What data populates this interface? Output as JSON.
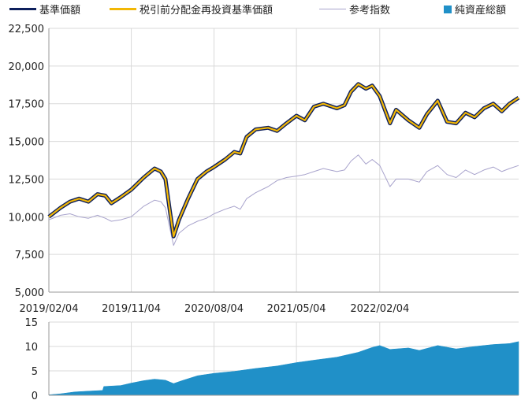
{
  "legend": {
    "nav": {
      "label": "基準価額",
      "color": "#0d1f5c"
    },
    "reinvested": {
      "label": "税引前分配金再投資基準価額",
      "color": "#f2b705"
    },
    "reference": {
      "label": "参考指数",
      "color": "#a8a3cc"
    },
    "net_assets": {
      "label": "純資産総額",
      "color": "#2090c8"
    }
  },
  "chart_data": [
    {
      "type": "line",
      "x_tick_labels": [
        "2019/02/04",
        "2019/11/04",
        "2020/08/04",
        "2021/05/04",
        "2022/02/04"
      ],
      "y_tick_labels": [
        "5,000",
        "7,500",
        "10,000",
        "12,500",
        "15,000",
        "17,500",
        "20,000",
        "22,500"
      ],
      "ylim": [
        5000,
        22500
      ],
      "grid": true,
      "series": [
        {
          "name": "基準価額",
          "color": "#0d1f5c",
          "points": [
            [
              "2019/02/04",
              10000
            ],
            [
              "2019/03/15",
              10600
            ],
            [
              "2019/04/15",
              11000
            ],
            [
              "2019/05/15",
              11200
            ],
            [
              "2019/06/15",
              11000
            ],
            [
              "2019/07/15",
              11500
            ],
            [
              "2019/08/10",
              11400
            ],
            [
              "2019/08/30",
              10900
            ],
            [
              "2019/09/30",
              11300
            ],
            [
              "2019/11/04",
              11800
            ],
            [
              "2019/12/15",
              12600
            ],
            [
              "2020/01/20",
              13200
            ],
            [
              "2020/02/10",
              13000
            ],
            [
              "2020/02/25",
              12500
            ],
            [
              "2020/03/10",
              10500
            ],
            [
              "2020/03/23",
              8700
            ],
            [
              "2020/04/10",
              9800
            ],
            [
              "2020/05/10",
              11200
            ],
            [
              "2020/06/10",
              12500
            ],
            [
              "2020/07/10",
              13000
            ],
            [
              "2020/08/04",
              13300
            ],
            [
              "2020/09/10",
              13800
            ],
            [
              "2020/10/10",
              14300
            ],
            [
              "2020/10/30",
              14200
            ],
            [
              "2020/11/20",
              15300
            ],
            [
              "2020/12/20",
              15800
            ],
            [
              "2021/01/30",
              15900
            ],
            [
              "2021/03/01",
              15700
            ],
            [
              "2021/04/01",
              16200
            ],
            [
              "2021/05/04",
              16700
            ],
            [
              "2021/06/01",
              16400
            ],
            [
              "2021/07/01",
              17300
            ],
            [
              "2021/08/01",
              17500
            ],
            [
              "2021/09/15",
              17200
            ],
            [
              "2021/10/10",
              17400
            ],
            [
              "2021/11/01",
              18300
            ],
            [
              "2021/11/25",
              18800
            ],
            [
              "2021/12/20",
              18500
            ],
            [
              "2022/01/10",
              18700
            ],
            [
              "2022/02/04",
              18000
            ],
            [
              "2022/03/10",
              16200
            ],
            [
              "2022/03/30",
              17100
            ],
            [
              "2022/05/10",
              16400
            ],
            [
              "2022/06/15",
              15900
            ],
            [
              "2022/07/10",
              16800
            ],
            [
              "2022/08/15",
              17700
            ],
            [
              "2022/09/15",
              16300
            ],
            [
              "2022/10/15",
              16200
            ],
            [
              "2022/11/15",
              16900
            ],
            [
              "2022/12/15",
              16600
            ],
            [
              "2023/01/15",
              17200
            ],
            [
              "2023/02/15",
              17500
            ],
            [
              "2023/03/15",
              17000
            ],
            [
              "2023/04/10",
              17500
            ],
            [
              "2023/05/10",
              17900
            ]
          ]
        },
        {
          "name": "税引前分配金再投資基準価額",
          "color": "#f2b705",
          "points": [
            [
              "2019/02/04",
              10000
            ],
            [
              "2019/03/15",
              10600
            ],
            [
              "2019/04/15",
              11000
            ],
            [
              "2019/05/15",
              11200
            ],
            [
              "2019/06/15",
              11000
            ],
            [
              "2019/07/15",
              11500
            ],
            [
              "2019/08/10",
              11400
            ],
            [
              "2019/08/30",
              10900
            ],
            [
              "2019/09/30",
              11300
            ],
            [
              "2019/11/04",
              11800
            ],
            [
              "2019/12/15",
              12600
            ],
            [
              "2020/01/20",
              13200
            ],
            [
              "2020/02/10",
              13000
            ],
            [
              "2020/02/25",
              12500
            ],
            [
              "2020/03/10",
              10500
            ],
            [
              "2020/03/23",
              8700
            ],
            [
              "2020/04/10",
              9800
            ],
            [
              "2020/05/10",
              11200
            ],
            [
              "2020/06/10",
              12500
            ],
            [
              "2020/07/10",
              13000
            ],
            [
              "2020/08/04",
              13300
            ],
            [
              "2020/09/10",
              13800
            ],
            [
              "2020/10/10",
              14300
            ],
            [
              "2020/10/30",
              14200
            ],
            [
              "2020/11/20",
              15300
            ],
            [
              "2020/12/20",
              15800
            ],
            [
              "2021/01/30",
              15900
            ],
            [
              "2021/03/01",
              15700
            ],
            [
              "2021/04/01",
              16200
            ],
            [
              "2021/05/04",
              16700
            ],
            [
              "2021/06/01",
              16400
            ],
            [
              "2021/07/01",
              17300
            ],
            [
              "2021/08/01",
              17500
            ],
            [
              "2021/09/15",
              17200
            ],
            [
              "2021/10/10",
              17400
            ],
            [
              "2021/11/01",
              18300
            ],
            [
              "2021/11/25",
              18800
            ],
            [
              "2021/12/20",
              18500
            ],
            [
              "2022/01/10",
              18700
            ],
            [
              "2022/02/04",
              18000
            ],
            [
              "2022/03/10",
              16200
            ],
            [
              "2022/03/30",
              17100
            ],
            [
              "2022/05/10",
              16400
            ],
            [
              "2022/06/15",
              15900
            ],
            [
              "2022/07/10",
              16800
            ],
            [
              "2022/08/15",
              17700
            ],
            [
              "2022/09/15",
              16300
            ],
            [
              "2022/10/15",
              16200
            ],
            [
              "2022/11/15",
              16900
            ],
            [
              "2022/12/15",
              16600
            ],
            [
              "2023/01/15",
              17200
            ],
            [
              "2023/02/15",
              17500
            ],
            [
              "2023/03/15",
              17000
            ],
            [
              "2023/04/10",
              17500
            ],
            [
              "2023/05/10",
              17900
            ]
          ]
        },
        {
          "name": "参考指数",
          "color": "#a8a3cc",
          "points": [
            [
              "2019/02/04",
              9800
            ],
            [
              "2019/03/15",
              10100
            ],
            [
              "2019/04/15",
              10200
            ],
            [
              "2019/05/15",
              10000
            ],
            [
              "2019/06/15",
              9900
            ],
            [
              "2019/07/15",
              10100
            ],
            [
              "2019/08/10",
              9900
            ],
            [
              "2019/08/30",
              9700
            ],
            [
              "2019/09/30",
              9800
            ],
            [
              "2019/11/04",
              10000
            ],
            [
              "2019/12/15",
              10700
            ],
            [
              "2020/01/20",
              11100
            ],
            [
              "2020/02/10",
              11000
            ],
            [
              "2020/02/25",
              10600
            ],
            [
              "2020/03/10",
              9300
            ],
            [
              "2020/03/23",
              8100
            ],
            [
              "2020/04/10",
              8900
            ],
            [
              "2020/05/10",
              9400
            ],
            [
              "2020/06/10",
              9700
            ],
            [
              "2020/07/10",
              9900
            ],
            [
              "2020/08/04",
              10200
            ],
            [
              "2020/09/10",
              10500
            ],
            [
              "2020/10/10",
              10700
            ],
            [
              "2020/10/30",
              10500
            ],
            [
              "2020/11/20",
              11200
            ],
            [
              "2020/12/20",
              11600
            ],
            [
              "2021/01/30",
              12000
            ],
            [
              "2021/03/01",
              12400
            ],
            [
              "2021/04/01",
              12600
            ],
            [
              "2021/05/04",
              12700
            ],
            [
              "2021/06/01",
              12800
            ],
            [
              "2021/07/01",
              13000
            ],
            [
              "2021/08/01",
              13200
            ],
            [
              "2021/09/15",
              13000
            ],
            [
              "2021/10/10",
              13100
            ],
            [
              "2021/11/01",
              13700
            ],
            [
              "2021/11/25",
              14100
            ],
            [
              "2021/12/20",
              13500
            ],
            [
              "2022/01/10",
              13800
            ],
            [
              "2022/02/04",
              13400
            ],
            [
              "2022/03/10",
              12000
            ],
            [
              "2022/03/30",
              12500
            ],
            [
              "2022/05/10",
              12500
            ],
            [
              "2022/06/15",
              12300
            ],
            [
              "2022/07/10",
              13000
            ],
            [
              "2022/08/15",
              13400
            ],
            [
              "2022/09/15",
              12800
            ],
            [
              "2022/10/15",
              12600
            ],
            [
              "2022/11/15",
              13100
            ],
            [
              "2022/12/15",
              12800
            ],
            [
              "2023/01/15",
              13100
            ],
            [
              "2023/02/15",
              13300
            ],
            [
              "2023/03/15",
              13000
            ],
            [
              "2023/04/10",
              13200
            ],
            [
              "2023/05/10",
              13400
            ]
          ]
        }
      ]
    },
    {
      "type": "area",
      "y_tick_labels": [
        "0",
        "5",
        "10",
        "15"
      ],
      "ylim": [
        0,
        15
      ],
      "grid": true,
      "series": [
        {
          "name": "純資産総額",
          "color": "#2090c8",
          "points": [
            [
              "2019/02/04",
              0.1
            ],
            [
              "2019/03/15",
              0.3
            ],
            [
              "2019/05/01",
              0.7
            ],
            [
              "2019/07/01",
              0.9
            ],
            [
              "2019/08/01",
              1.0
            ],
            [
              "2019/08/05",
              1.8
            ],
            [
              "2019/09/30",
              2.0
            ],
            [
              "2019/11/04",
              2.5
            ],
            [
              "2019/12/15",
              3.0
            ],
            [
              "2020/01/20",
              3.3
            ],
            [
              "2020/02/25",
              3.1
            ],
            [
              "2020/03/23",
              2.4
            ],
            [
              "2020/04/20",
              3.0
            ],
            [
              "2020/06/10",
              4.0
            ],
            [
              "2020/08/04",
              4.5
            ],
            [
              "2020/10/10",
              4.9
            ],
            [
              "2020/12/20",
              5.5
            ],
            [
              "2021/03/01",
              6.0
            ],
            [
              "2021/05/04",
              6.7
            ],
            [
              "2021/07/01",
              7.2
            ],
            [
              "2021/09/15",
              7.8
            ],
            [
              "2021/11/25",
              8.8
            ],
            [
              "2022/01/10",
              9.8
            ],
            [
              "2022/02/04",
              10.2
            ],
            [
              "2022/03/10",
              9.4
            ],
            [
              "2022/05/10",
              9.7
            ],
            [
              "2022/06/15",
              9.2
            ],
            [
              "2022/08/15",
              10.2
            ],
            [
              "2022/10/15",
              9.5
            ],
            [
              "2022/12/15",
              10.0
            ],
            [
              "2023/02/15",
              10.4
            ],
            [
              "2023/04/10",
              10.6
            ],
            [
              "2023/05/10",
              11.0
            ]
          ]
        }
      ]
    }
  ]
}
